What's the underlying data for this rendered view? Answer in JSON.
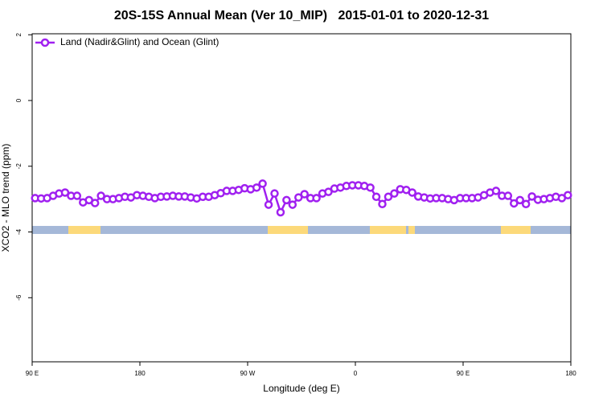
{
  "chart_data": {
    "type": "line",
    "title": "20S-15S Annual Mean (Ver 10_MIP)   2015-01-01 to 2020-12-31",
    "x_label": "Longitude (deg E)",
    "y_label": "XCO2 - MLO trend (ppm)",
    "xlim": [
      90,
      540
    ],
    "ylim": [
      -7.95,
      2.03
    ],
    "xticks": [
      {
        "value": 90,
        "label": "90 E"
      },
      180,
      {
        "value": 270,
        "label": "90 W"
      },
      {
        "value": 360,
        "label": "0"
      },
      {
        "value": 450,
        "label": "90 E"
      },
      {
        "value": 540,
        "label": "180"
      }
    ],
    "yticks": [
      -6,
      -4,
      -2,
      0,
      2
    ],
    "legend": "upper left",
    "series": [
      {
        "name": "Land (Nadir&Glint) and Ocean (Glint)",
        "color": "#a020f0",
        "x": [
          92.5,
          97.5,
          102.5,
          107.5,
          112.5,
          117.5,
          122.5,
          127.5,
          132.5,
          137.5,
          142.5,
          147.5,
          152.5,
          157.5,
          162.5,
          167.5,
          172.5,
          177.5,
          182.5,
          187.5,
          192.5,
          197.5,
          202.5,
          207.5,
          212.5,
          217.5,
          222.5,
          227.5,
          232.5,
          237.5,
          242.5,
          247.5,
          252.5,
          257.5,
          262.5,
          267.5,
          272.5,
          277.5,
          282.5,
          287.5,
          292.5,
          297.5,
          302.5,
          307.5,
          312.5,
          317.5,
          322.5,
          327.5,
          332.5,
          337.5,
          342.5,
          347.5,
          352.5,
          357.5,
          362.5,
          367.5,
          372.5,
          377.5,
          382.5,
          387.5,
          392.5,
          397.5,
          402.5,
          407.5,
          412.5,
          417.5,
          422.5,
          427.5,
          432.5,
          437.5,
          442.5,
          447.5,
          452.5,
          457.5,
          462.5,
          467.5,
          472.5,
          477.5,
          482.5,
          487.5,
          492.5,
          497.5,
          502.5,
          507.5,
          512.5,
          517.5,
          522.5,
          527.5,
          532.5,
          537.5
        ],
        "values": [
          -2.97,
          -2.98,
          -2.97,
          -2.9,
          -2.83,
          -2.8,
          -2.9,
          -2.9,
          -3.1,
          -3.03,
          -3.12,
          -2.9,
          -3.0,
          -3.0,
          -2.97,
          -2.93,
          -2.95,
          -2.88,
          -2.9,
          -2.93,
          -2.97,
          -2.93,
          -2.92,
          -2.9,
          -2.92,
          -2.92,
          -2.95,
          -2.98,
          -2.93,
          -2.93,
          -2.88,
          -2.82,
          -2.75,
          -2.75,
          -2.72,
          -2.67,
          -2.7,
          -2.65,
          -2.53,
          -3.17,
          -2.83,
          -3.4,
          -3.03,
          -3.17,
          -2.95,
          -2.85,
          -2.97,
          -2.97,
          -2.83,
          -2.78,
          -2.68,
          -2.65,
          -2.6,
          -2.58,
          -2.58,
          -2.6,
          -2.65,
          -2.93,
          -3.15,
          -2.93,
          -2.83,
          -2.7,
          -2.72,
          -2.8,
          -2.92,
          -2.95,
          -2.98,
          -2.97,
          -2.97,
          -3.0,
          -3.03,
          -2.97,
          -2.97,
          -2.97,
          -2.95,
          -2.88,
          -2.8,
          -2.75,
          -2.9,
          -2.9,
          -3.13,
          -3.03,
          -3.15,
          -2.92,
          -3.02,
          -3.0,
          -2.97,
          -2.93,
          -2.97,
          -2.88
        ]
      }
    ]
  }
}
